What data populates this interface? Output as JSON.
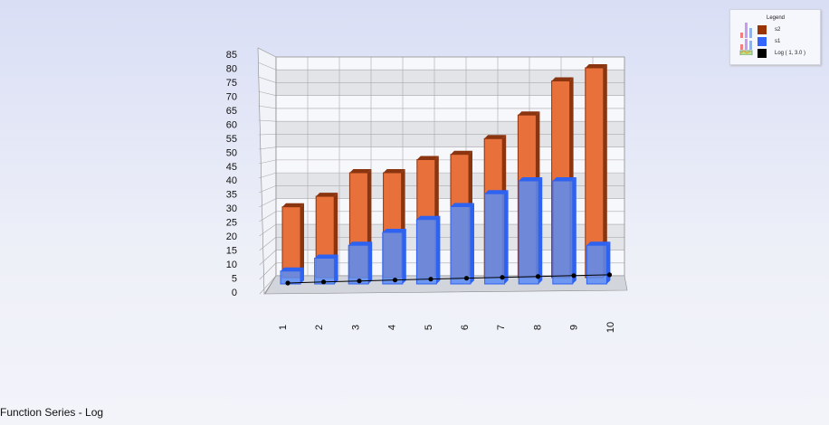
{
  "chart_data": {
    "type": "bar",
    "view": "3d",
    "categories": [
      "1",
      "2",
      "3",
      "4",
      "5",
      "6",
      "7",
      "8",
      "9",
      "10"
    ],
    "series": [
      {
        "name": "s2",
        "color": "#e8703a",
        "values": [
          27,
          31,
          40,
          40,
          45,
          47,
          53,
          62,
          75,
          80
        ]
      },
      {
        "name": "s1",
        "color": "#5b8cf5",
        "values": [
          5,
          10,
          15,
          20,
          25,
          30,
          35,
          40,
          40,
          15
        ]
      },
      {
        "name": "Log ( 1, 3.0 )",
        "type": "line",
        "color": "#000000",
        "values": [
          0,
          0.63,
          1,
          1.26,
          1.46,
          1.63,
          1.77,
          1.89,
          2,
          2.1
        ]
      }
    ],
    "yticks": [
      0,
      5,
      10,
      15,
      20,
      25,
      30,
      35,
      40,
      45,
      50,
      55,
      60,
      65,
      70,
      75,
      80,
      85
    ],
    "ylim": [
      0,
      85
    ],
    "grid": true,
    "legend_position": "top-right",
    "legend_title": "Legend"
  },
  "footer": "Function Series - Log"
}
